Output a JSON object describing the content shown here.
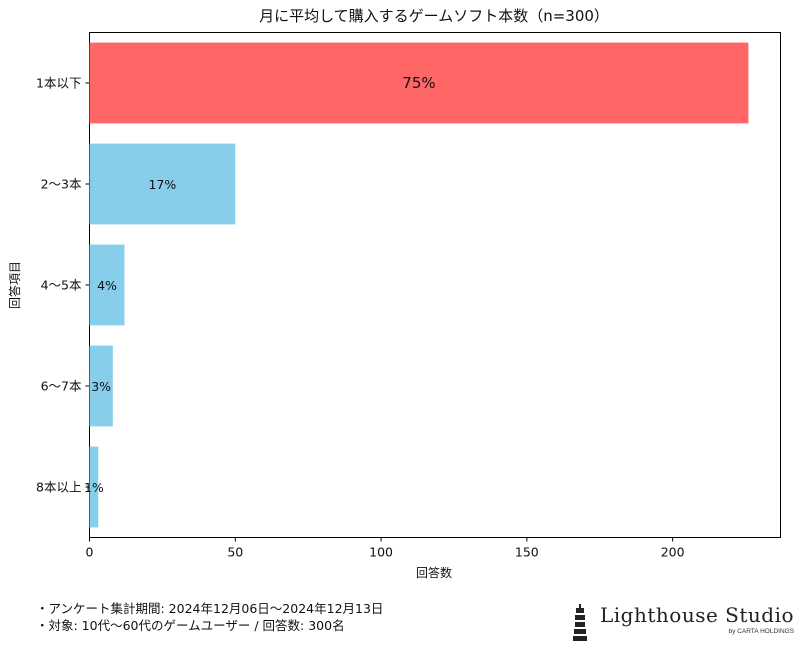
{
  "chart_data": {
    "type": "bar",
    "orientation": "horizontal",
    "title": "月に平均して購入するゲームソフト本数（n=300）",
    "xlabel": "回答数",
    "ylabel": "回答項目",
    "categories": [
      "1本以下",
      "2〜3本",
      "4〜5本",
      "6〜7本",
      "8本以上"
    ],
    "values": [
      226,
      50,
      12,
      8,
      3
    ],
    "data_labels": [
      "75%",
      "17%",
      "4%",
      "3%",
      "1%"
    ],
    "colors": [
      "#FF6666",
      "#87CEEB",
      "#87CEEB",
      "#87CEEB",
      "#87CEEB"
    ],
    "xlim": [
      0,
      237
    ],
    "xticks": [
      0,
      50,
      100,
      150,
      200
    ],
    "grid": false
  },
  "footnotes": [
    "・アンケート集計期間: 2024年12月06日〜2024年12月13日",
    "・対象: 10代〜60代のゲームユーザー / 回答数: 300名"
  ],
  "logo": {
    "title": "Lighthouse Studio",
    "subtitle": "by CARTA HOLDINGS"
  }
}
